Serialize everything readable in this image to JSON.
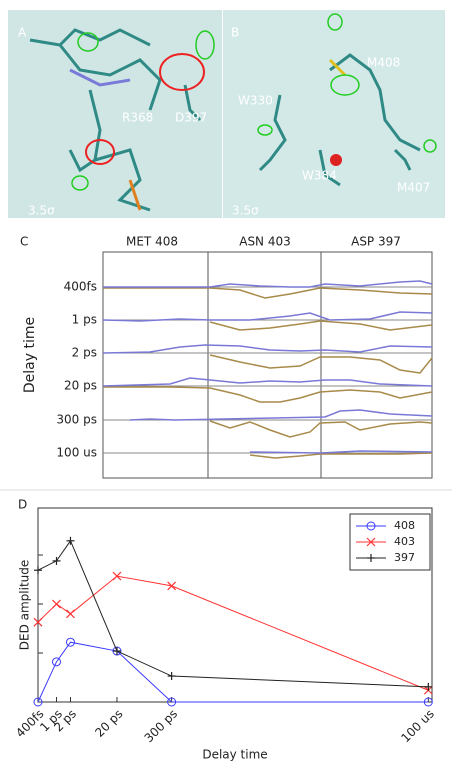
{
  "panels": {
    "a": {
      "label": "A",
      "annotations": [
        "R368",
        "D397",
        "3.5σ"
      ]
    },
    "b": {
      "label": "B",
      "annotations": [
        "M408",
        "W330",
        "W384",
        "M407",
        "3.5σ"
      ]
    },
    "c": {
      "label": "C",
      "y_label": "Delay time",
      "columns": [
        "MET 408",
        "ASN 403",
        "ASP 397"
      ],
      "rows": [
        "400fs",
        "1 ps",
        "2  ps",
        "20 ps",
        "300 ps",
        "100 us"
      ]
    }
  },
  "chart_data": {
    "type": "line",
    "panel_label": "D",
    "xlabel": "Delay time",
    "ylabel": "DED amplitude",
    "xscale": "log",
    "x": [
      4e-13,
      1e-12,
      2e-12,
      2e-11,
      3e-10,
      0.0001
    ],
    "xlim": [
      4e-13,
      0.00012
    ],
    "xticks": [
      {
        "value": 4e-13,
        "label": "400fs"
      },
      {
        "value": 1e-12,
        "label": "1 ps"
      },
      {
        "value": 2e-12,
        "label": "2 ps"
      },
      {
        "value": 2e-11,
        "label": "20 ps"
      },
      {
        "value": 3e-10,
        "label": "300 ps"
      },
      {
        "value": 0.0001,
        "label": "100 us"
      }
    ],
    "ylim": [
      0,
      3.96
    ],
    "yticks": [
      0,
      1,
      2,
      3
    ],
    "legend": "upper right",
    "series": [
      {
        "name": "408",
        "color": "#3a3aff",
        "marker": "o",
        "values": [
          0,
          0.82,
          1.22,
          1.04,
          0,
          0
        ]
      },
      {
        "name": "403",
        "color": "#ff3333",
        "marker": "x",
        "values": [
          1.63,
          2.0,
          1.8,
          2.57,
          2.37,
          0.24
        ]
      },
      {
        "name": "397",
        "color": "#222222",
        "marker": "+",
        "values": [
          2.69,
          2.88,
          3.29,
          1.04,
          0.53,
          0.31
        ]
      }
    ]
  }
}
